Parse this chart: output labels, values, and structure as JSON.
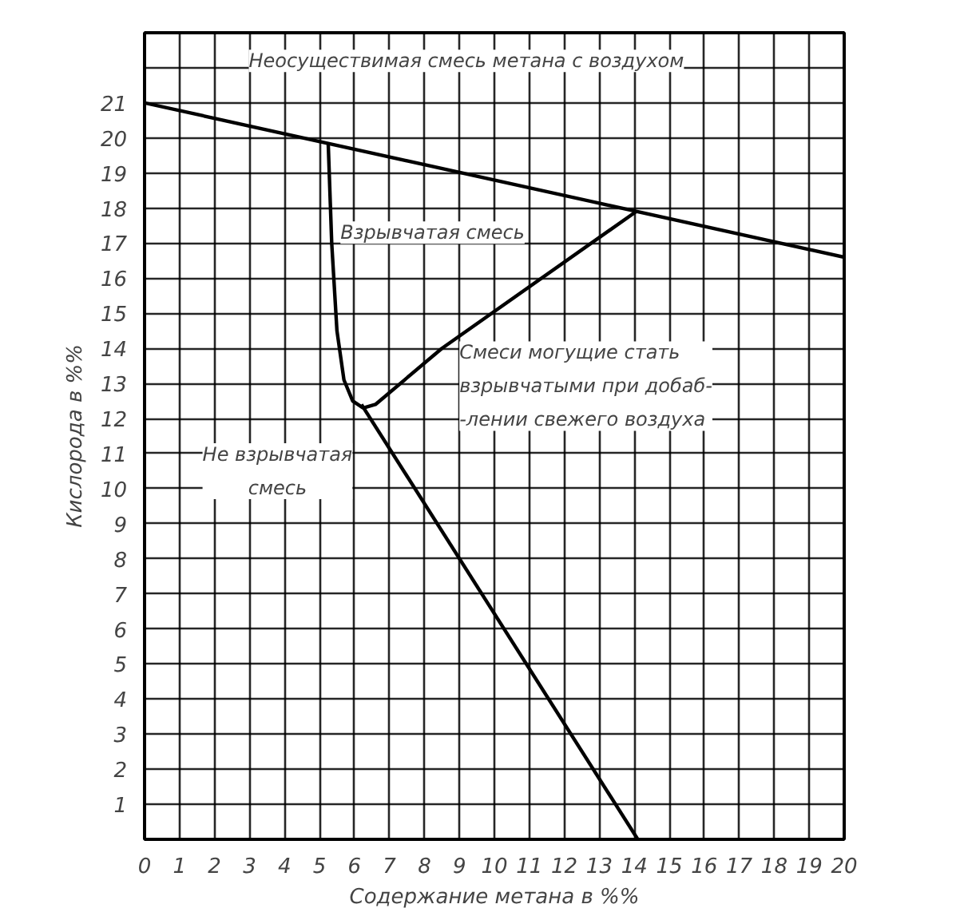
{
  "chart_data": {
    "type": "line",
    "xlabel": "Содержание метана в %%",
    "ylabel": "Кислорода в %%",
    "xlim": [
      0,
      20
    ],
    "ylim": [
      0,
      23
    ],
    "xticks": [
      0,
      1,
      2,
      3,
      4,
      5,
      6,
      7,
      8,
      9,
      10,
      11,
      12,
      13,
      14,
      15,
      16,
      17,
      18,
      19,
      20
    ],
    "yticks": [
      1,
      2,
      3,
      4,
      5,
      6,
      7,
      8,
      9,
      10,
      11,
      12,
      13,
      14,
      15,
      16,
      17,
      18,
      19,
      20,
      21,
      {
        "value": 22,
        "label": null
      }
    ],
    "grid": true,
    "marker": "none",
    "line_style": "solid",
    "series": [
      {
        "color": "#000000",
        "x": [
          0,
          20
        ],
        "values": [
          21,
          16.6
        ]
      },
      {
        "color": "#000000",
        "x": [
          5.25,
          5.35,
          5.5,
          5.7,
          5.95,
          6.25
        ],
        "values": [
          19.85,
          17,
          14.5,
          13.1,
          12.5,
          12.3
        ]
      },
      {
        "color": "#000000",
        "x": [
          6.25,
          6.6,
          8.5,
          14.05
        ],
        "values": [
          12.3,
          12.4,
          14.0,
          17.9
        ]
      },
      {
        "color": "#000000",
        "x": [
          6.2,
          14.1
        ],
        "values": [
          12.4,
          0
        ]
      }
    ],
    "annotations": [
      "Неосуществимая смесь метана с воздухом",
      "Взрывчатая смесь",
      "Смеси могущие стать\nвзрывчатыми при добаб-\n-лении свежего воздуха",
      "Не взрывчатая\nсмесь"
    ]
  }
}
